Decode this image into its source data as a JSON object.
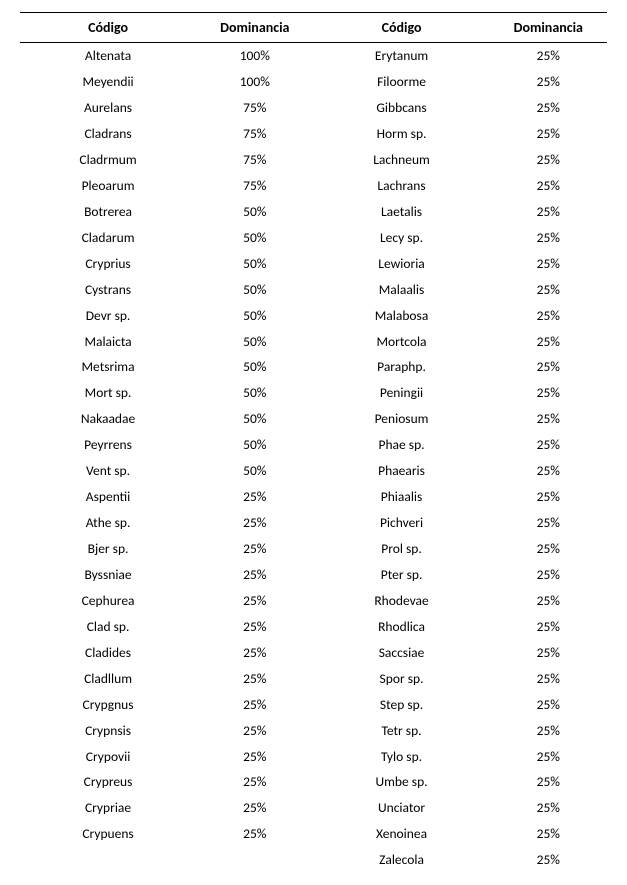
{
  "headers": {
    "codigo": "Código",
    "dominancia": "Dominancia"
  },
  "left": [
    {
      "codigo": "Altenata",
      "dom": "100%"
    },
    {
      "codigo": "Meyendii",
      "dom": "100%"
    },
    {
      "codigo": "Aurelans",
      "dom": "75%"
    },
    {
      "codigo": "Cladrans",
      "dom": "75%"
    },
    {
      "codigo": "Cladrmum",
      "dom": "75%"
    },
    {
      "codigo": "Pleoarum",
      "dom": "75%"
    },
    {
      "codigo": "Botrerea",
      "dom": "50%"
    },
    {
      "codigo": "Cladarum",
      "dom": "50%"
    },
    {
      "codigo": "Cryprius",
      "dom": "50%"
    },
    {
      "codigo": "Cystrans",
      "dom": "50%"
    },
    {
      "codigo": "Devr sp.",
      "dom": "50%"
    },
    {
      "codigo": "Malaicta",
      "dom": "50%"
    },
    {
      "codigo": "Metsrima",
      "dom": "50%"
    },
    {
      "codigo": "Mort sp.",
      "dom": "50%"
    },
    {
      "codigo": "Nakaadae",
      "dom": "50%"
    },
    {
      "codigo": "Peyrrens",
      "dom": "50%"
    },
    {
      "codigo": "Vent sp.",
      "dom": "50%"
    },
    {
      "codigo": "Aspentii",
      "dom": "25%"
    },
    {
      "codigo": "Athe sp.",
      "dom": "25%"
    },
    {
      "codigo": "Bjer sp.",
      "dom": "25%"
    },
    {
      "codigo": "Byssniae",
      "dom": "25%"
    },
    {
      "codigo": "Cephurea",
      "dom": "25%"
    },
    {
      "codigo": "Clad sp.",
      "dom": "25%"
    },
    {
      "codigo": "Cladides",
      "dom": "25%"
    },
    {
      "codigo": "Cladllum",
      "dom": "25%"
    },
    {
      "codigo": "Crypgnus",
      "dom": "25%"
    },
    {
      "codigo": "Crypnsis",
      "dom": "25%"
    },
    {
      "codigo": "Crypovii",
      "dom": "25%"
    },
    {
      "codigo": "Crypreus",
      "dom": "25%"
    },
    {
      "codigo": "Crypriae",
      "dom": "25%"
    },
    {
      "codigo": "Crypuens",
      "dom": "25%"
    }
  ],
  "right": [
    {
      "codigo": "Erytanum",
      "dom": "25%"
    },
    {
      "codigo": "Filoorme",
      "dom": "25%"
    },
    {
      "codigo": "Gibbcans",
      "dom": "25%"
    },
    {
      "codigo": "Horm sp.",
      "dom": "25%"
    },
    {
      "codigo": "Lachneum",
      "dom": "25%"
    },
    {
      "codigo": "Lachrans",
      "dom": "25%"
    },
    {
      "codigo": "Laetalis",
      "dom": "25%"
    },
    {
      "codigo": "Lecy sp.",
      "dom": "25%"
    },
    {
      "codigo": "Lewioria",
      "dom": "25%"
    },
    {
      "codigo": "Malaalis",
      "dom": "25%"
    },
    {
      "codigo": "Malabosa",
      "dom": "25%"
    },
    {
      "codigo": "Mortcola",
      "dom": "25%"
    },
    {
      "codigo": "Paraphp.",
      "dom": "25%"
    },
    {
      "codigo": "Peningii",
      "dom": "25%"
    },
    {
      "codigo": "Peniosum",
      "dom": "25%"
    },
    {
      "codigo": "Phae sp.",
      "dom": "25%"
    },
    {
      "codigo": "Phaearis",
      "dom": "25%"
    },
    {
      "codigo": "Phiaalis",
      "dom": "25%"
    },
    {
      "codigo": "Pichveri",
      "dom": "25%"
    },
    {
      "codigo": "Prol sp.",
      "dom": "25%"
    },
    {
      "codigo": "Pter sp.",
      "dom": "25%"
    },
    {
      "codigo": "Rhodevae",
      "dom": "25%"
    },
    {
      "codigo": "Rhodlica",
      "dom": "25%"
    },
    {
      "codigo": "Saccsiae",
      "dom": "25%"
    },
    {
      "codigo": "Spor sp.",
      "dom": "25%"
    },
    {
      "codigo": "Step sp.",
      "dom": "25%"
    },
    {
      "codigo": "Tetr sp.",
      "dom": "25%"
    },
    {
      "codigo": "Tylo sp.",
      "dom": "25%"
    },
    {
      "codigo": "Umbe sp.",
      "dom": "25%"
    },
    {
      "codigo": "Unciator",
      "dom": "25%"
    },
    {
      "codigo": "Xenoinea",
      "dom": "25%"
    },
    {
      "codigo": "Zalecola",
      "dom": "25%"
    }
  ]
}
